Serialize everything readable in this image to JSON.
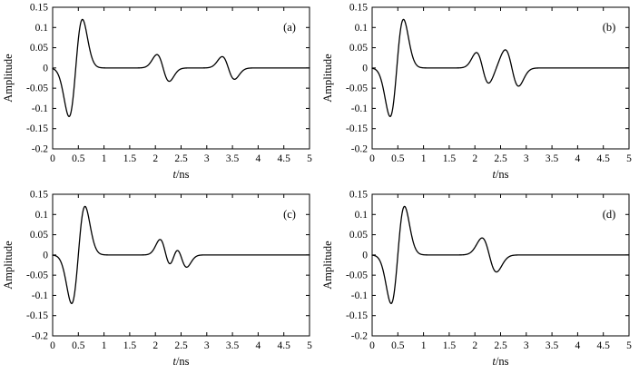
{
  "figure": {
    "background": "#ffffff",
    "line_color": "#000000",
    "axis_color": "#000000"
  },
  "chart_data": [
    {
      "type": "line",
      "panel_label": "(a)",
      "title": "",
      "xlabel_italic": "t",
      "xlabel_rest": "/ns",
      "ylabel": "Amplitude",
      "xlim": [
        0,
        5
      ],
      "ylim": [
        -0.2,
        0.15
      ],
      "xtick_values": [
        0,
        0.5,
        1,
        1.5,
        2,
        2.5,
        3,
        3.5,
        4,
        4.5,
        5
      ],
      "xtick_labels": [
        "0",
        "0.5",
        "1",
        "1.5",
        "2",
        "2.5",
        "3",
        "3.5",
        "4",
        "4.5",
        "5"
      ],
      "ytick_values": [
        -0.2,
        -0.15,
        -0.1,
        -0.05,
        0,
        0.05,
        0.1,
        0.15
      ],
      "ytick_labels": [
        "-0.2",
        "-0.15",
        "-0.1",
        "-0.05",
        "0",
        "0.05",
        "0.1",
        "0.15"
      ],
      "grid": false,
      "legend": "none",
      "series": [
        {
          "name": "waveform",
          "model": "gaussian-derivative-wavelets",
          "wavelets": [
            {
              "center": 0.45,
              "sigma": 0.13,
              "amp": 0.12
            },
            {
              "center": 2.15,
              "sigma": 0.12,
              "amp": -0.033
            },
            {
              "center": 3.42,
              "sigma": 0.12,
              "amp": -0.028
            }
          ]
        }
      ]
    },
    {
      "type": "line",
      "panel_label": "(b)",
      "title": "",
      "xlabel_italic": "t",
      "xlabel_rest": "/ns",
      "ylabel": "Amplitude",
      "xlim": [
        0,
        5
      ],
      "ylim": [
        -0.2,
        0.15
      ],
      "xtick_values": [
        0,
        0.5,
        1,
        1.5,
        2,
        2.5,
        3,
        3.5,
        4,
        4.5,
        5
      ],
      "xtick_labels": [
        "0",
        "0.5",
        "1",
        "1.5",
        "2",
        "2.5",
        "3",
        "3.5",
        "4",
        "4.5",
        "5"
      ],
      "ytick_values": [
        -0.2,
        -0.15,
        -0.1,
        -0.05,
        0,
        0.05,
        0.1,
        0.15
      ],
      "ytick_labels": [
        "-0.2",
        "-0.15",
        "-0.1",
        "-0.05",
        "0",
        "0.05",
        "0.1",
        "0.15"
      ],
      "grid": false,
      "legend": "none",
      "series": [
        {
          "name": "waveform",
          "model": "gaussian-derivative-wavelets",
          "wavelets": [
            {
              "center": 0.48,
              "sigma": 0.13,
              "amp": 0.12
            },
            {
              "center": 2.15,
              "sigma": 0.12,
              "amp": -0.038
            },
            {
              "center": 2.72,
              "sigma": 0.13,
              "amp": -0.045
            }
          ]
        }
      ]
    },
    {
      "type": "line",
      "panel_label": "(c)",
      "title": "",
      "xlabel_italic": "t",
      "xlabel_rest": "/ns",
      "ylabel": "Amplitude",
      "xlim": [
        0,
        5
      ],
      "ylim": [
        -0.2,
        0.15
      ],
      "xtick_values": [
        0,
        0.5,
        1,
        1.5,
        2,
        2.5,
        3,
        3.5,
        4,
        4.5,
        5
      ],
      "xtick_labels": [
        "0",
        "0.5",
        "1",
        "1.5",
        "2",
        "2.5",
        "3",
        "3.5",
        "4",
        "4.5",
        "5"
      ],
      "ytick_values": [
        -0.2,
        -0.15,
        -0.1,
        -0.05,
        0,
        0.05,
        0.1,
        0.15
      ],
      "ytick_labels": [
        "-0.2",
        "-0.15",
        "-0.1",
        "-0.05",
        "0",
        "0.05",
        "0.1",
        "0.15"
      ],
      "grid": false,
      "legend": "none",
      "series": [
        {
          "name": "waveform",
          "model": "gaussian-derivative-wavelets",
          "wavelets": [
            {
              "center": 0.5,
              "sigma": 0.13,
              "amp": 0.12
            },
            {
              "center": 2.2,
              "sigma": 0.11,
              "amp": -0.038
            },
            {
              "center": 2.5,
              "sigma": 0.11,
              "amp": -0.03
            }
          ]
        }
      ]
    },
    {
      "type": "line",
      "panel_label": "(d)",
      "title": "",
      "xlabel_italic": "t",
      "xlabel_rest": "/ns",
      "ylabel": "Amplitude",
      "xlim": [
        0,
        5
      ],
      "ylim": [
        -0.2,
        0.15
      ],
      "xtick_values": [
        0,
        0.5,
        1,
        1.5,
        2,
        2.5,
        3,
        3.5,
        4,
        4.5,
        5
      ],
      "xtick_labels": [
        "0",
        "0.5",
        "1",
        "1.5",
        "2",
        "2.5",
        "3",
        "3.5",
        "4",
        "4.5",
        "5"
      ],
      "ytick_values": [
        -0.2,
        -0.15,
        -0.1,
        -0.05,
        0,
        0.05,
        0.1,
        0.15
      ],
      "ytick_labels": [
        "-0.2",
        "-0.15",
        "-0.1",
        "-0.05",
        "0",
        "0.05",
        "0.1",
        "0.15"
      ],
      "grid": false,
      "legend": "none",
      "series": [
        {
          "name": "waveform",
          "model": "gaussian-derivative-wavelets",
          "wavelets": [
            {
              "center": 0.5,
              "sigma": 0.13,
              "amp": 0.12
            },
            {
              "center": 2.28,
              "sigma": 0.14,
              "amp": -0.042
            }
          ]
        }
      ]
    }
  ]
}
